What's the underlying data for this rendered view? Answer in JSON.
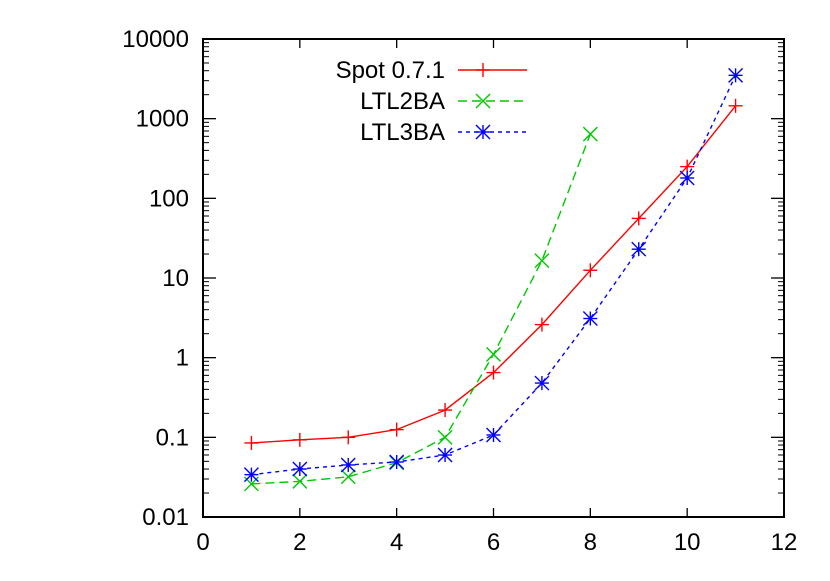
{
  "chart_data": {
    "type": "line",
    "title": "",
    "xlabel": "",
    "ylabel": "",
    "xlim": [
      0,
      12
    ],
    "ylim": [
      0.01,
      10000
    ],
    "yscale": "log",
    "grid": false,
    "legend_position": "top-left",
    "x_ticks": [
      "0",
      "2",
      "4",
      "6",
      "8",
      "10",
      "12"
    ],
    "y_ticks": [
      "0.01",
      "0.1",
      "1",
      "10",
      "100",
      "1000",
      "10000"
    ],
    "series": [
      {
        "name": "Spot 0.7.1",
        "color": "#ff0000",
        "dash": "solid",
        "marker": "plus",
        "x": [
          1,
          2,
          3,
          4,
          5,
          6,
          7,
          8,
          9,
          10,
          11
        ],
        "y": [
          0.085,
          0.093,
          0.1,
          0.125,
          0.22,
          0.65,
          2.6,
          12.5,
          56,
          250,
          1450
        ]
      },
      {
        "name": "LTL2BA",
        "color": "#00c800",
        "dash": "dashed",
        "marker": "cross",
        "x": [
          1,
          2,
          3,
          4,
          5,
          6,
          7,
          8
        ],
        "y": [
          0.026,
          0.028,
          0.032,
          0.048,
          0.1,
          1.1,
          16.5,
          640
        ]
      },
      {
        "name": "LTL3BA",
        "color": "#0000ff",
        "dash": "dotted",
        "marker": "star",
        "x": [
          1,
          2,
          3,
          4,
          5,
          6,
          7,
          8,
          9,
          10,
          11
        ],
        "y": [
          0.034,
          0.04,
          0.045,
          0.049,
          0.06,
          0.107,
          0.48,
          3.1,
          23,
          180,
          3500
        ]
      }
    ]
  }
}
